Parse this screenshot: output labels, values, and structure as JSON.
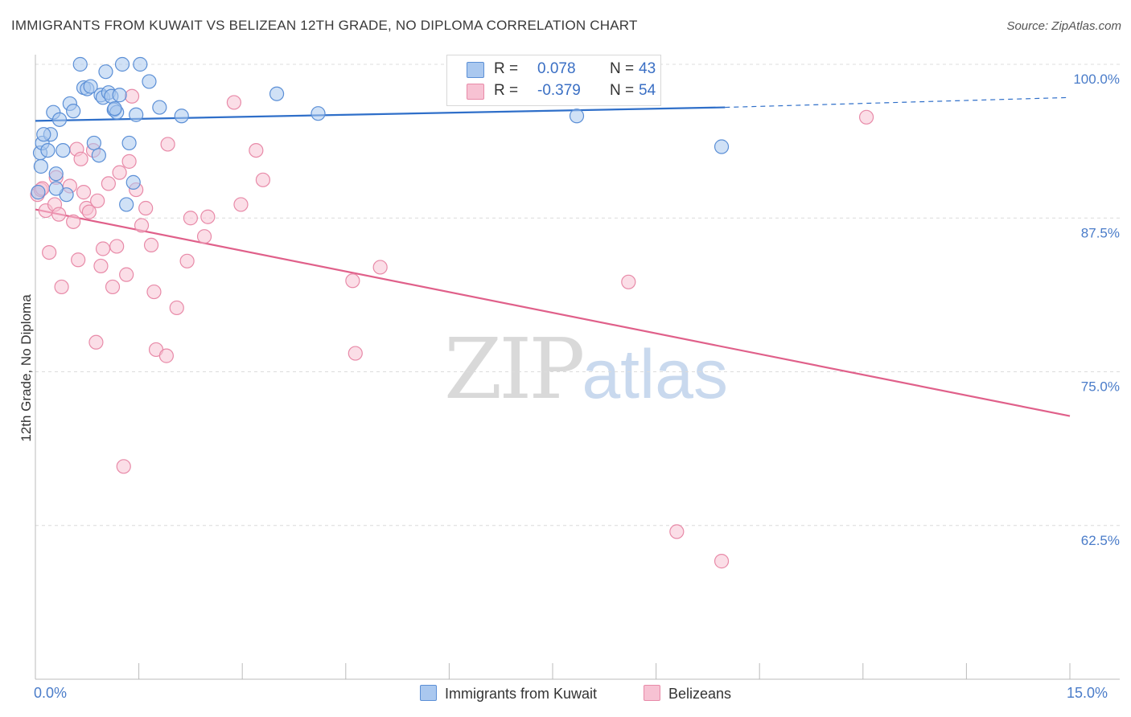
{
  "header": {
    "title": "IMMIGRANTS FROM KUWAIT VS BELIZEAN 12TH GRADE, NO DIPLOMA CORRELATION CHART",
    "source": "Source: ZipAtlas.com"
  },
  "watermark": {
    "zip": "ZIP",
    "atlas": "atlas"
  },
  "legend": {
    "rows": [
      {
        "r_label": "R =",
        "r_value": "0.078",
        "n_label": "N =",
        "n_value": "43"
      },
      {
        "r_label": "R =",
        "r_value": "-0.379",
        "n_label": "N =",
        "n_value": "54"
      }
    ]
  },
  "bottom_legend": [
    "Immigrants from Kuwait",
    "Belizeans"
  ],
  "colors": {
    "blue_fill": "#aac8ef",
    "blue_stroke": "#5b8fd6",
    "blue_line": "#2f6fc9",
    "pink_fill": "#f7c2d3",
    "pink_stroke": "#e88aa8",
    "pink_line": "#e0608a",
    "axis_label": "#4a7cc9",
    "grid": "#dcdcdc"
  },
  "chart_data": {
    "type": "scatter",
    "title": "IMMIGRANTS FROM KUWAIT VS BELIZEAN 12TH GRADE, NO DIPLOMA CORRELATION CHART",
    "xlabel": "",
    "ylabel": "12th Grade, No Diploma",
    "xlim": [
      0,
      15
    ],
    "ylim": [
      50,
      101
    ],
    "x_tick_labels": [
      "0.0%",
      "15.0%"
    ],
    "y_ticks": [
      62.5,
      75.0,
      87.5,
      100.0
    ],
    "y_tick_labels": [
      "62.5%",
      "75.0%",
      "87.5%",
      "100.0%"
    ],
    "grid": "horizontal dashed",
    "legend_position": "top-center",
    "series": [
      {
        "name": "Immigrants from Kuwait",
        "color": "#5b8fd6",
        "r": 0.078,
        "n": 43,
        "points": [
          [
            0.04,
            89.6
          ],
          [
            0.07,
            92.8
          ],
          [
            0.08,
            91.7
          ],
          [
            0.1,
            93.6
          ],
          [
            0.18,
            93.0
          ],
          [
            0.22,
            94.3
          ],
          [
            0.26,
            96.1
          ],
          [
            0.3,
            91.1
          ],
          [
            0.35,
            95.5
          ],
          [
            0.4,
            93.0
          ],
          [
            0.45,
            89.4
          ],
          [
            0.5,
            96.8
          ],
          [
            0.55,
            96.2
          ],
          [
            0.65,
            100.0
          ],
          [
            0.7,
            98.1
          ],
          [
            0.75,
            98.0
          ],
          [
            0.8,
            98.2
          ],
          [
            0.85,
            93.6
          ],
          [
            0.92,
            92.6
          ],
          [
            0.95,
            97.5
          ],
          [
            0.98,
            97.3
          ],
          [
            1.02,
            99.4
          ],
          [
            1.06,
            97.7
          ],
          [
            1.1,
            97.4
          ],
          [
            1.14,
            96.3
          ],
          [
            1.18,
            96.1
          ],
          [
            1.22,
            97.5
          ],
          [
            1.26,
            100.0
          ],
          [
            1.32,
            88.6
          ],
          [
            1.36,
            93.6
          ],
          [
            1.42,
            90.4
          ],
          [
            1.46,
            95.9
          ],
          [
            1.52,
            100.0
          ],
          [
            1.65,
            98.6
          ],
          [
            1.8,
            96.5
          ],
          [
            2.12,
            95.8
          ],
          [
            3.5,
            97.6
          ],
          [
            4.1,
            96.0
          ],
          [
            7.85,
            95.8
          ],
          [
            9.95,
            93.3
          ],
          [
            0.12,
            94.3
          ],
          [
            0.3,
            89.9
          ],
          [
            1.15,
            96.4
          ]
        ],
        "trend_line": {
          "x": [
            0,
            10.0
          ],
          "y": [
            95.4,
            96.5
          ],
          "dashed_extension_to": [
            15,
            97.3
          ]
        }
      },
      {
        "name": "Belizeans",
        "color": "#e88aa8",
        "r": -0.379,
        "n": 54,
        "points": [
          [
            0.03,
            89.4
          ],
          [
            0.08,
            89.8
          ],
          [
            0.1,
            89.9
          ],
          [
            0.15,
            88.1
          ],
          [
            0.2,
            84.7
          ],
          [
            0.28,
            88.6
          ],
          [
            0.3,
            90.8
          ],
          [
            0.34,
            87.8
          ],
          [
            0.38,
            81.9
          ],
          [
            0.5,
            90.1
          ],
          [
            0.55,
            87.2
          ],
          [
            0.6,
            93.1
          ],
          [
            0.62,
            84.1
          ],
          [
            0.66,
            92.3
          ],
          [
            0.7,
            89.6
          ],
          [
            0.74,
            88.3
          ],
          [
            0.78,
            88.0
          ],
          [
            0.84,
            93.0
          ],
          [
            0.88,
            77.4
          ],
          [
            0.9,
            88.9
          ],
          [
            0.95,
            83.6
          ],
          [
            0.98,
            85.0
          ],
          [
            1.06,
            90.3
          ],
          [
            1.12,
            81.9
          ],
          [
            1.18,
            85.2
          ],
          [
            1.22,
            91.2
          ],
          [
            1.28,
            67.3
          ],
          [
            1.32,
            82.9
          ],
          [
            1.36,
            92.1
          ],
          [
            1.4,
            97.4
          ],
          [
            1.46,
            89.8
          ],
          [
            1.54,
            86.9
          ],
          [
            1.6,
            88.3
          ],
          [
            1.68,
            85.3
          ],
          [
            1.72,
            81.5
          ],
          [
            1.75,
            76.8
          ],
          [
            1.9,
            76.3
          ],
          [
            1.92,
            93.5
          ],
          [
            2.05,
            80.2
          ],
          [
            2.2,
            84.0
          ],
          [
            2.25,
            87.5
          ],
          [
            2.45,
            86.0
          ],
          [
            2.5,
            87.6
          ],
          [
            2.88,
            96.9
          ],
          [
            2.98,
            88.6
          ],
          [
            3.2,
            93.0
          ],
          [
            3.3,
            90.6
          ],
          [
            4.6,
            82.4
          ],
          [
            4.64,
            76.5
          ],
          [
            5.0,
            83.5
          ],
          [
            8.6,
            82.3
          ],
          [
            9.3,
            62.0
          ],
          [
            9.95,
            59.6
          ],
          [
            12.05,
            95.7
          ]
        ],
        "trend_line": {
          "x": [
            0,
            15
          ],
          "y": [
            88.2,
            71.4
          ]
        }
      }
    ]
  }
}
